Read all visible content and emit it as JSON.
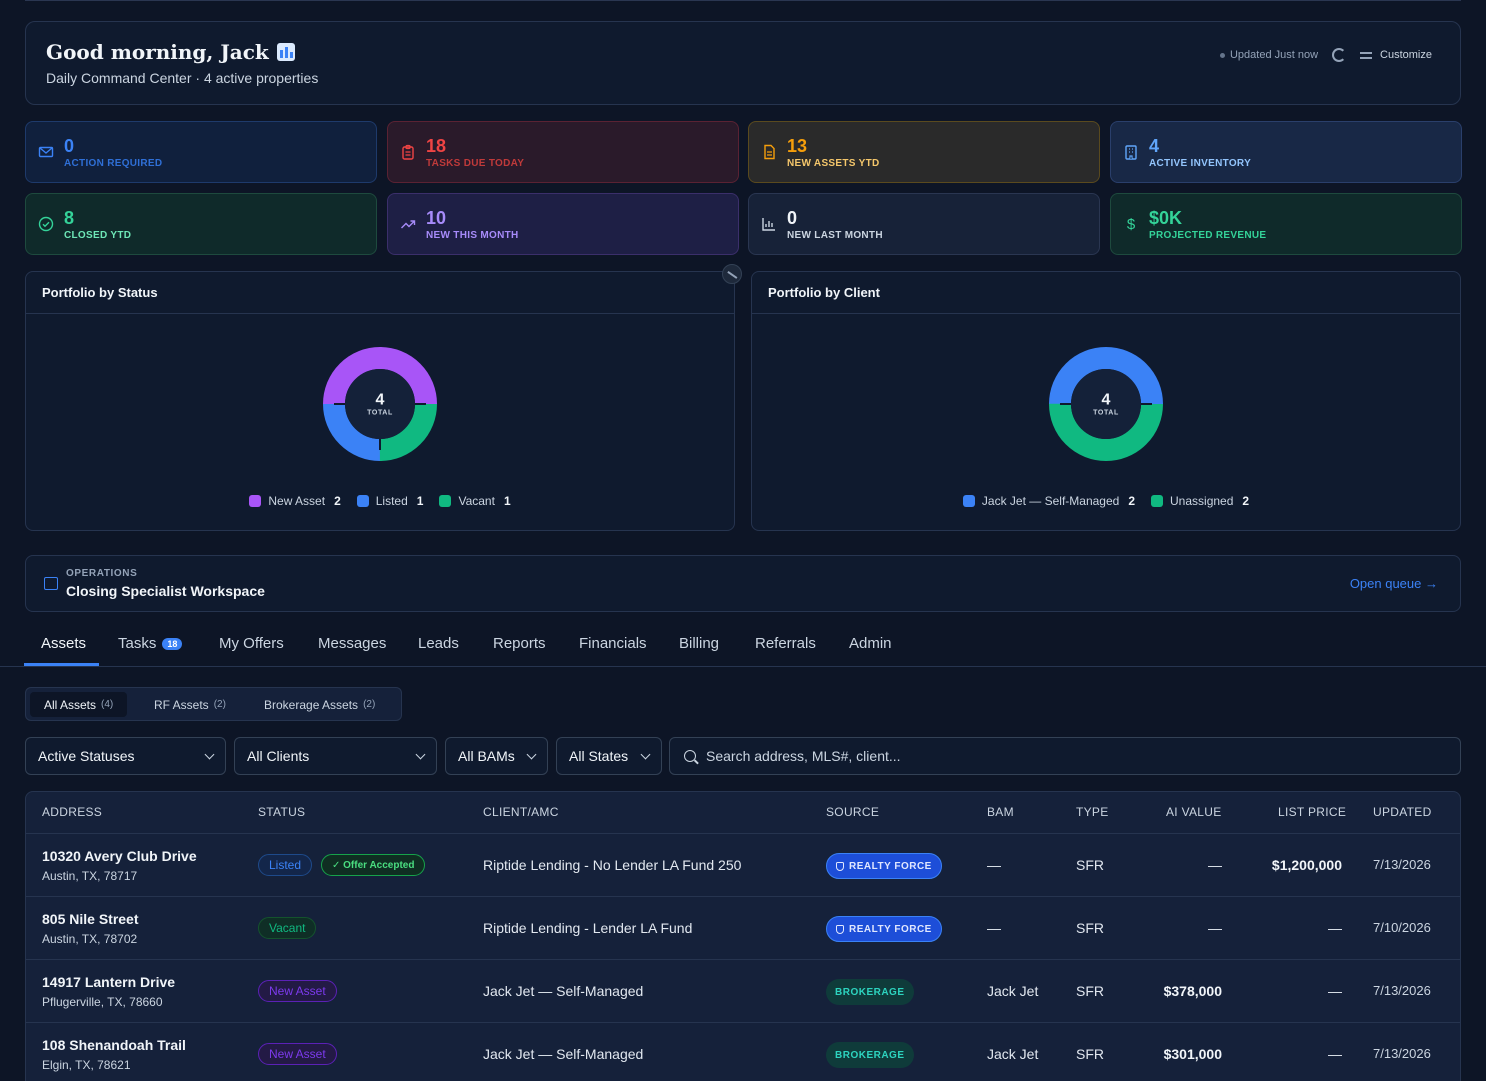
{
  "header": {
    "greeting": "Good morning, Jack",
    "subtitle": "Daily Command Center · 4 active properties",
    "updated": "Updated Just now",
    "customize": "Customize"
  },
  "stats": [
    {
      "value": "0",
      "label": "ACTION REQUIRED",
      "icon": "mail-icon",
      "color": "#3b82f6"
    },
    {
      "value": "18",
      "label": "TASKS DUE TODAY",
      "icon": "clipboard-icon",
      "color": "#ef4444"
    },
    {
      "value": "13",
      "label": "NEW ASSETS YTD",
      "icon": "document-icon",
      "color": "#f59e0b"
    },
    {
      "value": "4",
      "label": "ACTIVE INVENTORY",
      "icon": "building-icon",
      "color": "#60a5fa"
    },
    {
      "value": "8",
      "label": "CLOSED YTD",
      "icon": "check-circle-icon",
      "color": "#34d399"
    },
    {
      "value": "10",
      "label": "NEW THIS MONTH",
      "icon": "trend-up-icon",
      "color": "#a78bfa"
    },
    {
      "value": "0",
      "label": "NEW LAST MONTH",
      "icon": "bar-chart-icon",
      "color": "#e2e8f0"
    },
    {
      "value": "$0K",
      "label": "PROJECTED REVENUE",
      "icon": "dollar-icon",
      "color": "#34d399"
    }
  ],
  "panels": {
    "status": {
      "title": "Portfolio by Status",
      "total": "4",
      "total_label": "TOTAL",
      "legend": [
        {
          "label": "New Asset",
          "count": "2",
          "color": "#a855f7"
        },
        {
          "label": "Listed",
          "count": "1",
          "color": "#3b82f6"
        },
        {
          "label": "Vacant",
          "count": "1",
          "color": "#10b981"
        }
      ]
    },
    "client": {
      "title": "Portfolio by Client",
      "total": "4",
      "total_label": "TOTAL",
      "legend": [
        {
          "label": "Jack Jet — Self-Managed",
          "count": "2",
          "color": "#3b82f6"
        },
        {
          "label": "Unassigned",
          "count": "2",
          "color": "#10b981"
        }
      ]
    }
  },
  "operations": {
    "kicker": "OPERATIONS",
    "title": "Closing Specialist Workspace",
    "link": "Open queue →"
  },
  "tabs": [
    {
      "label": "Assets"
    },
    {
      "label": "Tasks",
      "badge": "18"
    },
    {
      "label": "My Offers"
    },
    {
      "label": "Messages"
    },
    {
      "label": "Leads"
    },
    {
      "label": "Reports"
    },
    {
      "label": "Financials"
    },
    {
      "label": "Billing"
    },
    {
      "label": "Referrals"
    },
    {
      "label": "Admin"
    }
  ],
  "segments": [
    {
      "label": "All Assets",
      "count": "(4)"
    },
    {
      "label": "RF Assets",
      "count": "(2)"
    },
    {
      "label": "Brokerage Assets",
      "count": "(2)"
    }
  ],
  "filters": {
    "status": "Active Statuses",
    "clients": "All Clients",
    "bams": "All BAMs",
    "states": "All States",
    "search_placeholder": "Search address, MLS#, client..."
  },
  "table": {
    "columns": [
      "ADDRESS",
      "STATUS",
      "CLIENT/AMC",
      "SOURCE",
      "BAM",
      "TYPE",
      "AI VALUE",
      "LIST PRICE",
      "UPDATED"
    ],
    "rows": [
      {
        "address": "10320 Avery Club Drive",
        "city": "Austin, TX, 78717",
        "status": "Listed",
        "extra": "✓ Offer Accepted",
        "client": "Riptide Lending - No Lender LA Fund 250",
        "source": "REALTY FORCE",
        "bam": "—",
        "type": "SFR",
        "ai_value": "—",
        "list_price": "$1,200,000",
        "updated": "7/13/2026"
      },
      {
        "address": "805 Nile Street",
        "city": "Austin, TX, 78702",
        "status": "Vacant",
        "extra": "",
        "client": "Riptide Lending - Lender LA Fund",
        "source": "REALTY FORCE",
        "bam": "—",
        "type": "SFR",
        "ai_value": "—",
        "list_price": "—",
        "updated": "7/10/2026"
      },
      {
        "address": "14917 Lantern Drive",
        "city": "Pflugerville, TX, 78660",
        "status": "New Asset",
        "extra": "",
        "client": "Jack Jet — Self-Managed",
        "source": "BROKERAGE",
        "bam": "Jack Jet",
        "type": "SFR",
        "ai_value": "$378,000",
        "list_price": "—",
        "updated": "7/13/2026"
      },
      {
        "address": "108 Shenandoah Trail",
        "city": "Elgin, TX, 78621",
        "status": "New Asset",
        "extra": "",
        "client": "Jack Jet — Self-Managed",
        "source": "BROKERAGE",
        "bam": "Jack Jet",
        "type": "SFR",
        "ai_value": "$301,000",
        "list_price": "—",
        "updated": "7/13/2026"
      }
    ]
  }
}
